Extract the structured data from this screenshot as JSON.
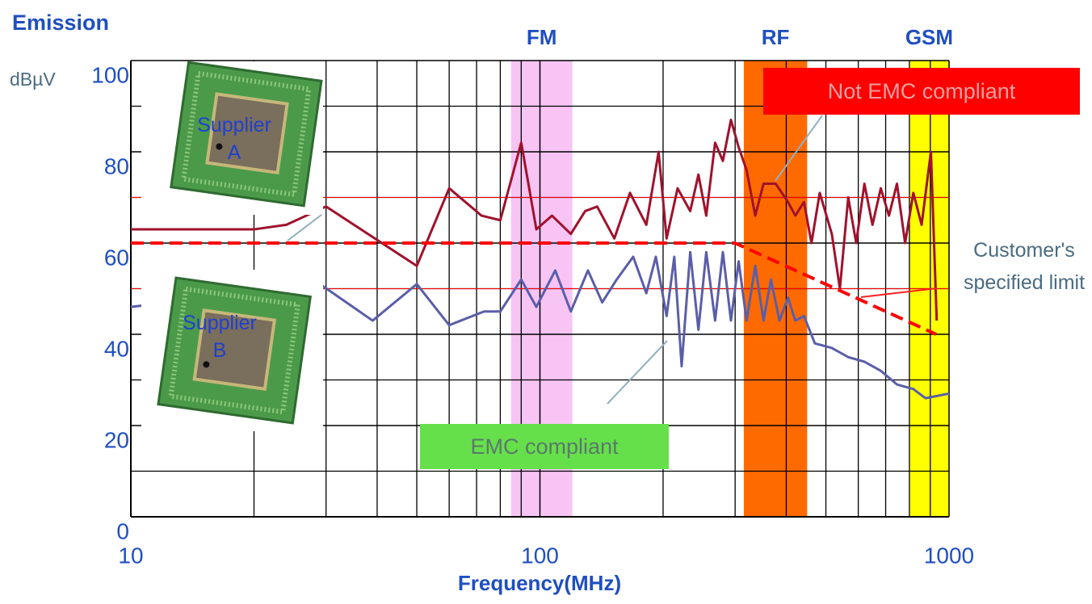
{
  "chart_data": {
    "type": "line",
    "title": "Emission",
    "y_label": "dBµV",
    "x_label": "Frequency(MHz)",
    "x_log": true,
    "xlim": [
      10,
      1000
    ],
    "xticks": [
      10,
      100,
      1000
    ],
    "ylim": [
      0,
      100
    ],
    "yticks": [
      0,
      20,
      40,
      60,
      80,
      100
    ],
    "grid": true,
    "bands": [
      {
        "name": "FM",
        "range": [
          85,
          120
        ],
        "color": "#f7c4f4"
      },
      {
        "name": "RF",
        "range": [
          315,
          450
        ],
        "color": "#ff6a00"
      },
      {
        "name": "GSM",
        "range": [
          800,
          1000
        ],
        "color": "#ffff00"
      }
    ],
    "series": [
      {
        "name": "Supplier A",
        "color": "#a0122c",
        "x": [
          10,
          20,
          24,
          30,
          50,
          60,
          72,
          80,
          90,
          98,
          107,
          119,
          129,
          138,
          152,
          166,
          182,
          195,
          204,
          217,
          233,
          244,
          255,
          268,
          280,
          293,
          306,
          320,
          336,
          352,
          377,
          404,
          421,
          442,
          461,
          483,
          517,
          541,
          567,
          593,
          621,
          650,
          681,
          713,
          746,
          781,
          818,
          857,
          903,
          933
        ],
        "values": [
          63,
          63,
          64,
          68,
          55,
          72,
          66,
          65,
          82,
          63,
          66,
          62,
          67,
          68,
          61,
          71,
          64,
          80,
          61,
          72,
          67,
          75,
          66,
          82,
          78,
          87,
          81,
          76,
          66,
          73,
          73,
          69,
          66,
          69,
          60,
          71,
          62,
          50,
          70,
          60,
          73,
          64,
          72,
          66,
          73,
          60,
          71,
          64,
          80,
          43
        ]
      },
      {
        "name": "Supplier B",
        "color": "#5a5ea8",
        "x": [
          10,
          29,
          39,
          50,
          60,
          73,
          80,
          90,
          98,
          109,
          119,
          131,
          142,
          154,
          169,
          182,
          192,
          204,
          213,
          222,
          233,
          244,
          255,
          268,
          280,
          293,
          306,
          320,
          336,
          352,
          367,
          385,
          404,
          421,
          442,
          470,
          517,
          567,
          621,
          681,
          746,
          818,
          876,
          1000
        ],
        "values": [
          46,
          51,
          43,
          51,
          42,
          45,
          45,
          52,
          46,
          54,
          45,
          54,
          47,
          52,
          57,
          49,
          57,
          44,
          57,
          33,
          58,
          41,
          58,
          43,
          58,
          43,
          56,
          43,
          55,
          43,
          52,
          43,
          48,
          43,
          44,
          38,
          37,
          35,
          34,
          32,
          29,
          28,
          26,
          27
        ]
      }
    ],
    "limit": {
      "name": "Customer's specified limit",
      "color": "#ff0000",
      "x": [
        10,
        300,
        930
      ],
      "values": [
        60,
        60,
        40
      ]
    },
    "reference_lines": {
      "color": "#ff0000",
      "values": [
        70,
        50
      ]
    },
    "annotations": [
      {
        "text": "Not EMC compliant",
        "color": "#ff0000"
      },
      {
        "text": "EMC compliant",
        "color": "#66e04a"
      }
    ]
  }
}
